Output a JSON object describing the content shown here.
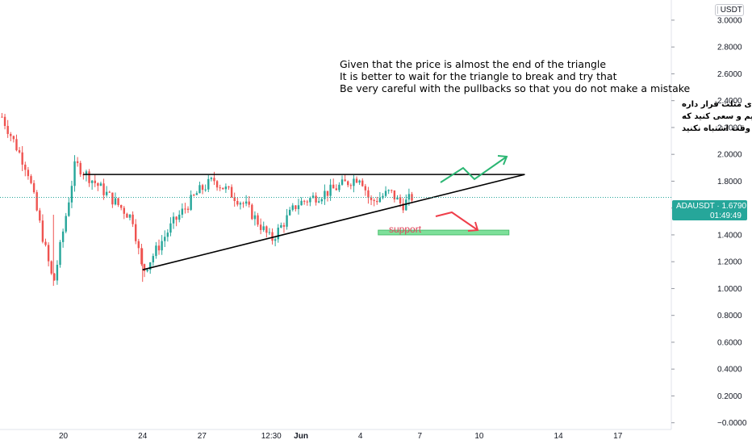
{
  "currency_badge": "USDT",
  "colors": {
    "up": "#26a69a",
    "down": "#ef5350",
    "price_tag": "#26a69a",
    "support_zone": "#7ee09a",
    "support_label": "#e0435a",
    "arrow_up": "#2bb673",
    "arrow_down": "#ef3e4a",
    "trendline": "#000000"
  },
  "annotations": {
    "english": [
      "Given that the price is almost the end of the triangle",
      "It is better to wait for the triangle to break and try that",
      "Be very careful with the pullbacks so that you do not make a mistake"
    ],
    "persian": [
      "با توجه به اینکه قیمت تقریبا اخرای مثلث قرار داره",
      "بهتره که منتظر شکست مثلث باشیم و سعی کنید که",
      "به پولبک ها خیلی دقت کنید که یه وقت اشتباه نکنید"
    ],
    "support_label": "support"
  },
  "price_tag": {
    "symbol_price": "ADAUSDT · 1.6790",
    "countdown": "01:49:49"
  },
  "chart_data": {
    "type": "candlestick",
    "symbol": "ADAUSDT",
    "last_price": 1.679,
    "y_ticks": [
      "3.0000",
      "2.8000",
      "2.6000",
      "2.4000",
      "2.2000",
      "2.0000",
      "1.8000",
      "1.6000",
      "1.4000",
      "1.2000",
      "1.0000",
      "0.8000",
      "0.6000",
      "0.4000",
      "0.2000",
      "−0.0000"
    ],
    "y_tick_values": [
      3.0,
      2.8,
      2.6,
      2.4,
      2.2,
      2.0,
      1.8,
      1.6,
      1.4,
      1.2,
      1.0,
      0.8,
      0.6,
      0.4,
      0.2,
      0.0
    ],
    "ylim": [
      -0.05,
      3.15
    ],
    "x_ticks": [
      "20",
      "24",
      "27",
      "12:30",
      "Jun",
      "4",
      "7",
      "10",
      "14",
      "17"
    ],
    "x_tick_days": [
      20,
      24,
      27,
      30.5,
      32,
      35,
      38,
      41,
      45,
      48
    ],
    "xlim": [
      16.8,
      50.7
    ],
    "candle_days": [
      16.9,
      30.2
    ],
    "candle_key_prices": [
      {
        "day": 16.9,
        "price": 2.28
      },
      {
        "day": 18.2,
        "price": 1.88
      },
      {
        "day": 19.5,
        "price": 1.03
      },
      {
        "day": 20.6,
        "price": 1.93
      },
      {
        "day": 23.5,
        "price": 1.52
      },
      {
        "day": 24.0,
        "price": 1.12
      },
      {
        "day": 25.5,
        "price": 1.48
      },
      {
        "day": 26.8,
        "price": 1.72
      },
      {
        "day": 27.6,
        "price": 1.81
      },
      {
        "day": 29.2,
        "price": 1.62
      },
      {
        "day": 30.5,
        "price": 1.36
      },
      {
        "day": 31.8,
        "price": 1.63
      },
      {
        "day": 33.5,
        "price": 1.73
      },
      {
        "day": 35.0,
        "price": 1.84
      },
      {
        "day": 35.5,
        "price": 1.64
      },
      {
        "day": 36.5,
        "price": 1.72
      },
      {
        "day": 37.1,
        "price": 1.62
      },
      {
        "day": 37.6,
        "price": 1.68
      }
    ],
    "drawings": {
      "resistance": {
        "from": [
          21.0,
          1.85
        ],
        "to": [
          43.3,
          1.85
        ]
      },
      "support_trendline": {
        "from": [
          24.0,
          1.14
        ],
        "to": [
          43.3,
          1.85
        ]
      },
      "support_zone": {
        "days": [
          35.9,
          42.5
        ],
        "prices": [
          1.4,
          1.435
        ]
      }
    }
  }
}
